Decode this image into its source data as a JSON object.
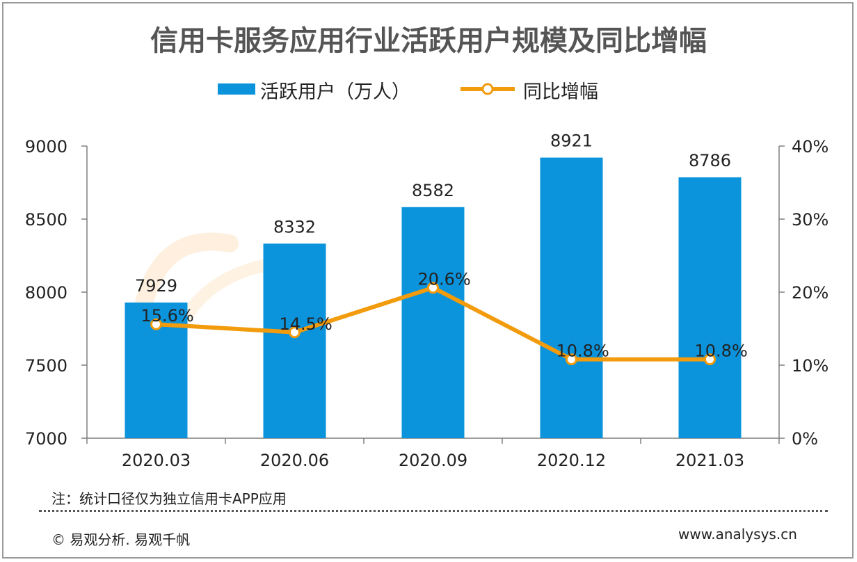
{
  "title": "信用卡服务应用行业活跃用户规模及同比增幅",
  "legend": {
    "bar_label": "活跃用户（万人）",
    "line_label": "同比增幅"
  },
  "colors": {
    "bar": "#0b93dc",
    "line": "#f29b0c",
    "title": "#555555"
  },
  "chart_data": {
    "type": "bar",
    "categories": [
      "2020.03",
      "2020.06",
      "2020.09",
      "2020.12",
      "2021.03"
    ],
    "series": [
      {
        "name": "活跃用户（万人）",
        "type": "bar",
        "axis": "left",
        "values": [
          7929,
          8332,
          8582,
          8921,
          8786
        ],
        "labels": [
          "7929",
          "8332",
          "8582",
          "8921",
          "8786"
        ]
      },
      {
        "name": "同比增幅",
        "type": "line",
        "axis": "right",
        "values": [
          15.6,
          14.5,
          20.6,
          10.8,
          10.8
        ],
        "labels": [
          "15.6%",
          "14.5%",
          "20.6%",
          "10.8%",
          "10.8%"
        ]
      }
    ],
    "y_left": {
      "ylim": [
        7000,
        9000
      ],
      "ticks": [
        "7000",
        "7500",
        "8000",
        "8500",
        "9000"
      ]
    },
    "y_right": {
      "ylim": [
        0,
        40
      ],
      "ticks": [
        "0%",
        "10%",
        "20%",
        "30%",
        "40%"
      ]
    },
    "legend_position": "top-center",
    "grid": false
  },
  "note": "注：统计口径仅为独立信用卡APP应用",
  "footer": {
    "copyright": "© 易观分析. 易观千帆",
    "website": "www.analysys.cn"
  }
}
